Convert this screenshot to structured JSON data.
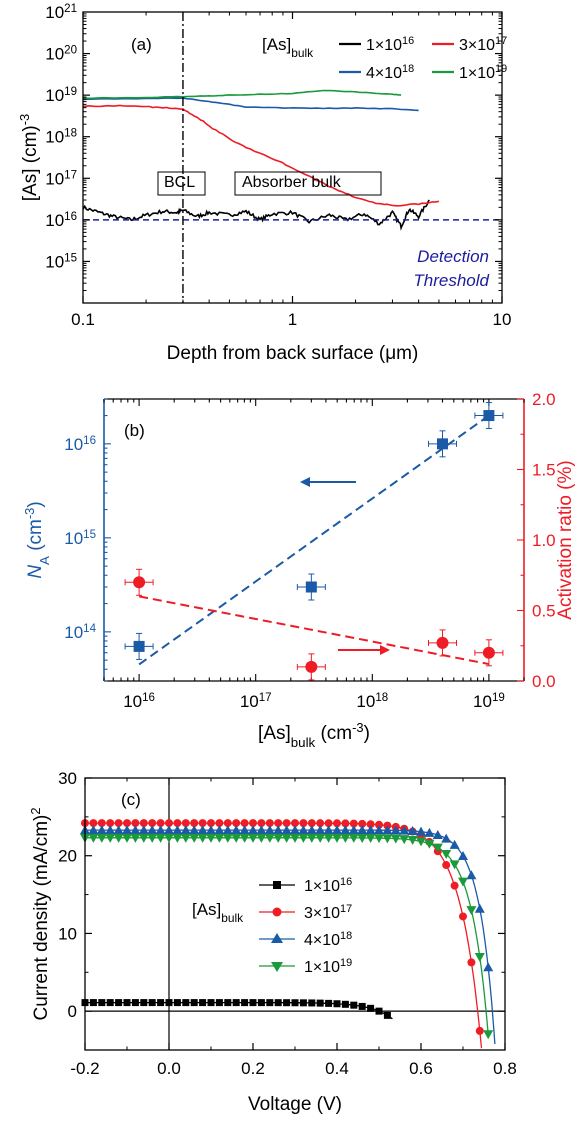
{
  "colors": {
    "black": "#000000",
    "red": "#ee1c25",
    "blue": "#1a5aa6",
    "green": "#1a9a3a",
    "navy": "#1c1c9c"
  },
  "chart_data": [
    {
      "panel": "(a)",
      "type": "line",
      "xlabel": "Depth from back surface (μm)",
      "ylabel": "[As] (cm⁻³)",
      "xscale": "log",
      "yscale": "log",
      "xlim": [
        0.1,
        10
      ],
      "ylim": [
        100000000000000.0,
        1e+21
      ],
      "xticks": [
        "0.1",
        "1",
        "10"
      ],
      "yticks": [
        "10¹⁵",
        "10¹⁶",
        "10¹⁷",
        "10¹⁸",
        "10¹⁹",
        "10²⁰",
        "10²¹"
      ],
      "legend_title": "[As]bulk",
      "legend_placement": "top-right",
      "series": [
        {
          "name": "1×10¹⁶",
          "color": "black",
          "x": [
            0.1,
            0.12,
            0.14,
            0.17,
            0.2,
            0.24,
            0.28,
            0.3,
            0.35,
            0.4,
            0.5,
            0.6,
            0.7,
            0.8,
            1.0,
            1.2,
            1.5,
            1.8,
            2.2,
            2.6,
            3.0,
            3.3,
            3.6,
            4.0,
            4.5
          ],
          "y": [
            2e+16,
            1.5e+16,
            1.2e+16,
            1e+16,
            1.3e+16,
            1.6e+16,
            1.5e+16,
            1.7e+16,
            1.2e+16,
            1.5e+16,
            1.3e+16,
            1.6e+16,
            1e+16,
            1.4e+16,
            1.5e+16,
            9000000000000000.0,
            1.3e+16,
            1e+16,
            1.4e+16,
            8000000000000000.0,
            1.5e+16,
            7000000000000000.0,
            1.8e+16,
            1.2e+16,
            3e+16
          ]
        },
        {
          "name": "3×10¹⁷",
          "color": "red",
          "x": [
            0.1,
            0.15,
            0.2,
            0.25,
            0.3,
            0.35,
            0.4,
            0.5,
            0.6,
            0.8,
            1.0,
            1.3,
            1.6,
            2.0,
            2.5,
            3.0,
            4.0,
            5.0
          ],
          "y": [
            5.5e+18,
            5.5e+18,
            5.3e+18,
            5e+18,
            4.5e+18,
            3e+18,
            1.8e+18,
            9e+17,
            5.5e+17,
            3e+17,
            1.8e+17,
            9e+16,
            5.5e+16,
            3.5e+16,
            2.5e+16,
            2.2e+16,
            2.4e+16,
            2.8e+16
          ]
        },
        {
          "name": "4×10¹⁸",
          "color": "blue",
          "x": [
            0.1,
            0.2,
            0.3,
            0.4,
            0.5,
            0.6,
            0.8,
            1.0,
            1.5,
            2.0,
            3.0,
            4.0
          ],
          "y": [
            8e+18,
            8.3e+18,
            8.5e+18,
            7e+18,
            6e+18,
            5.2e+18,
            5e+18,
            4.9e+18,
            4.8e+18,
            4.9e+18,
            4.7e+18,
            4.3e+18
          ]
        },
        {
          "name": "1×10¹⁹",
          "color": "green",
          "x": [
            0.1,
            0.2,
            0.3,
            0.4,
            0.5,
            0.7,
            1.0,
            1.4,
            2.0,
            2.5,
            3.0,
            3.3
          ],
          "y": [
            8.5e+18,
            8.8e+18,
            9.2e+18,
            9.6e+18,
            1e+19,
            1.05e+19,
            1.1e+19,
            1.3e+19,
            1.2e+19,
            1.1e+19,
            1.05e+19,
            1e+19
          ]
        }
      ],
      "reference_lines": [
        {
          "type": "horizontal",
          "y": 1e+16,
          "style": "dashed",
          "color": "navy",
          "label": "Detection Threshold"
        },
        {
          "type": "vertical",
          "x": 0.3,
          "style": "dash-dot",
          "color": "black"
        }
      ],
      "region_labels": [
        "BCL",
        "Absorber bulk"
      ],
      "detection_label_lines": [
        "Detection",
        "Threshold"
      ]
    },
    {
      "panel": "(b)",
      "type": "scatter",
      "xlabel": "[As]bulk (cm⁻³)",
      "xscale": "log",
      "xlim": [
        5000000000000000.0,
        2e+19
      ],
      "xticks": [
        "10¹⁶",
        "10¹⁷",
        "10¹⁸",
        "10¹⁹"
      ],
      "left_axis": {
        "label": "NA (cm⁻³)",
        "scale": "log",
        "ylim": [
          30000000000000.0,
          3e+16
        ],
        "ticks": [
          "10¹⁴",
          "10¹⁵",
          "10¹⁶"
        ],
        "color": "blue"
      },
      "right_axis": {
        "label": "Activation ratio (%)",
        "scale": "linear",
        "ylim": [
          0.0,
          2.0
        ],
        "ticks": [
          "0.0",
          "0.5",
          "1.0",
          "1.5",
          "2.0"
        ],
        "color": "red"
      },
      "series": [
        {
          "name": "NA",
          "axis": "left",
          "marker": "square",
          "color": "blue",
          "x": [
            1e+16,
            3e+17,
            4e+18,
            1e+19
          ],
          "y": [
            70000000000000.0,
            300000000000000.0,
            1e+16,
            2e+16
          ],
          "fit": {
            "x": [
              1e+16,
              1e+19
            ],
            "y": [
              45000000000000.0,
              2e+16
            ]
          }
        },
        {
          "name": "Activation ratio",
          "axis": "right",
          "marker": "circle",
          "color": "red",
          "x": [
            1e+16,
            3e+17,
            4e+18,
            1e+19
          ],
          "y": [
            0.7,
            0.1,
            0.27,
            0.2
          ],
          "fit": {
            "x": [
              1e+16,
              1e+19
            ],
            "y": [
              0.6,
              0.12
            ]
          }
        }
      ]
    },
    {
      "panel": "(c)",
      "type": "line",
      "xlabel": "Voltage (V)",
      "ylabel": "Current density (mA/cm²)",
      "xlim": [
        -0.2,
        0.8
      ],
      "ylim": [
        -5,
        30
      ],
      "xticks": [
        "-0.2",
        "0.0",
        "0.2",
        "0.4",
        "0.6",
        "0.8"
      ],
      "yticks": [
        "0",
        "10",
        "20",
        "30"
      ],
      "legend_title": "[As]bulk",
      "legend_placement": "center",
      "series": [
        {
          "name": "1×10¹⁶",
          "marker": "square",
          "color": "black",
          "Jsc": 1.1,
          "Voc": 0.5,
          "curvature": 0.05,
          "x_end": 0.535
        },
        {
          "name": "3×10¹⁷",
          "marker": "circle",
          "color": "red",
          "Jsc": 24.2,
          "Voc": 0.735,
          "curvature": 0.05,
          "x_end": 0.755
        },
        {
          "name": "4×10¹⁸",
          "marker": "triangle-up",
          "color": "blue",
          "Jsc": 23.3,
          "Voc": 0.77,
          "curvature": 0.036,
          "x_end": 0.78
        },
        {
          "name": "1×10¹⁹",
          "marker": "triangle-down",
          "color": "green",
          "Jsc": 22.3,
          "Voc": 0.755,
          "curvature": 0.04,
          "x_end": 0.77
        }
      ]
    }
  ]
}
